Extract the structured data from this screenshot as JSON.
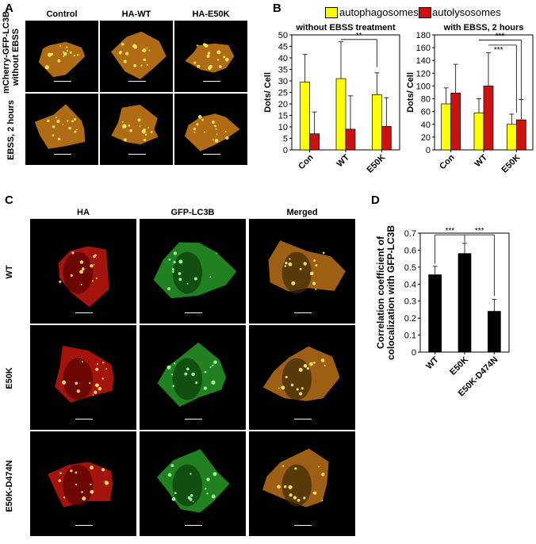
{
  "panels": {
    "A": "A",
    "B": "B",
    "C": "C",
    "D": "D"
  },
  "panel_a": {
    "columns": [
      "Control",
      "HA-WT",
      "HA-E50K"
    ],
    "row_label_top": [
      "mCherry-GFP-LC3B",
      "without EBSS"
    ],
    "row_label_bottom": [
      "EBSS, 2 hours"
    ]
  },
  "panel_c": {
    "columns": [
      "HA",
      "GFP-LC3B",
      "Merged"
    ],
    "rows": [
      "WT",
      "E50K",
      "E50K-D474N"
    ]
  },
  "colors": {
    "autophagosomes": "#ffff00",
    "autolysosomes": "#cc1111",
    "bar_black": "#000000",
    "micro_orange": "#e08a1a",
    "micro_red": "#d01a10",
    "micro_green": "#2aa52a"
  },
  "chart_data": [
    {
      "type": "bar",
      "title": "without EBSS treatment",
      "ylabel": "Dots/ Cell",
      "categories": [
        "Con",
        "WT",
        "E50K"
      ],
      "ylim": [
        0,
        50
      ],
      "yticks": [
        0,
        5,
        10,
        15,
        20,
        25,
        30,
        35,
        40,
        45,
        50
      ],
      "series": [
        {
          "name": "autophagosomes",
          "values": [
            29.5,
            31,
            24
          ],
          "errors": [
            12,
            16,
            9.5
          ]
        },
        {
          "name": "autolysosomes",
          "values": [
            7,
            9,
            10.2
          ],
          "errors": [
            9.5,
            14.5,
            12.5
          ]
        }
      ],
      "annotations": [
        "**"
      ]
    },
    {
      "type": "bar",
      "title": "with EBSS, 2 hours",
      "ylabel": "Dots/ Cell",
      "categories": [
        "Con",
        "WT",
        "E50K"
      ],
      "ylim": [
        0,
        180
      ],
      "yticks": [
        0,
        20,
        40,
        60,
        80,
        100,
        120,
        140,
        160,
        180
      ],
      "series": [
        {
          "name": "autophagosomes",
          "values": [
            72,
            58,
            40
          ],
          "errors": [
            25,
            22,
            16
          ]
        },
        {
          "name": "autolysosomes",
          "values": [
            89,
            100,
            47
          ],
          "errors": [
            45,
            52,
            32
          ]
        }
      ],
      "annotations": [
        "***",
        "***"
      ]
    },
    {
      "type": "bar",
      "ylabel": "Correlation coefficient of colocalization with GFP-LC3B",
      "categories": [
        "WT",
        "E50K",
        "E50K-D474N"
      ],
      "ylim": [
        0,
        0.7
      ],
      "yticks": [
        0,
        0.1,
        0.2,
        0.3,
        0.4,
        0.5,
        0.6,
        0.7
      ],
      "values": [
        0.455,
        0.58,
        0.24
      ],
      "errors": [
        0.05,
        0.06,
        0.07
      ],
      "annotations": [
        "***",
        "***"
      ]
    }
  ]
}
